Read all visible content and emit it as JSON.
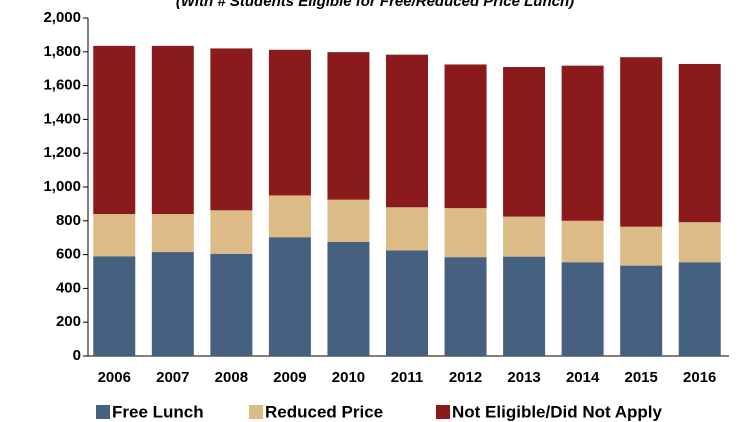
{
  "chart_data": {
    "type": "stacked_bar",
    "subtitle": "(With # Students Eligible for Free/Reduced Price Lunch)",
    "categories": [
      "2006",
      "2007",
      "2008",
      "2009",
      "2010",
      "2011",
      "2012",
      "2013",
      "2014",
      "2015",
      "2016"
    ],
    "series": [
      {
        "name": "Free Lunch",
        "color": "#46607f",
        "values": [
          590,
          615,
          605,
          703,
          675,
          625,
          585,
          588,
          555,
          535,
          555
        ]
      },
      {
        "name": "Reduced Price",
        "color": "#dcbb87",
        "values": [
          250,
          225,
          257,
          247,
          250,
          255,
          290,
          237,
          245,
          230,
          237
        ]
      },
      {
        "name": "Not Eligible/Did Not Apply",
        "color": "#8b1a1c",
        "values": [
          995,
          995,
          958,
          862,
          873,
          903,
          850,
          885,
          918,
          1003,
          936
        ]
      }
    ],
    "ylim": [
      0,
      2000
    ],
    "yticks": [
      0,
      200,
      400,
      600,
      800,
      {
        "value": 1000,
        "label": "1,000"
      },
      {
        "value": 1200,
        "label": "1,200"
      },
      {
        "value": 1400,
        "label": "1,400"
      },
      {
        "value": 1600,
        "label": "1,600"
      },
      {
        "value": 1800,
        "label": "1,800"
      },
      {
        "value": 2000,
        "label": "2,000"
      }
    ],
    "legend": "bottom"
  }
}
